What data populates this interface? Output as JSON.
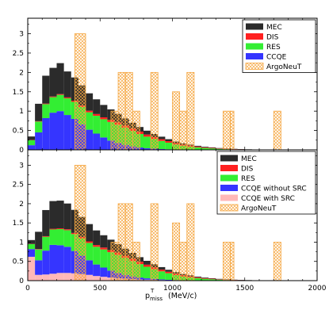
{
  "chart_data": [
    {
      "type": "bar",
      "stacked": true,
      "panel": "top",
      "x_edges": [
        0,
        50,
        100,
        150,
        200,
        250,
        300,
        350,
        400,
        450,
        500,
        550,
        600,
        650,
        700,
        750,
        800,
        850,
        900,
        950,
        1000,
        1050,
        1100,
        1150,
        1200,
        1250,
        1300,
        1350,
        1400,
        1450,
        1500,
        1550,
        1600,
        1650,
        1700,
        1750,
        1800,
        1850,
        1900,
        1950,
        2000
      ],
      "series": [
        {
          "name": "CCQE",
          "color": "#3535ff",
          "values": [
            0.12,
            0.45,
            0.82,
            0.96,
            1.0,
            0.9,
            0.8,
            0.66,
            0.52,
            0.42,
            0.32,
            0.24,
            0.18,
            0.13,
            0.09,
            0.06,
            0.04,
            0.03,
            0.02,
            0.015,
            0.01,
            0.007,
            0.005,
            0.004,
            0.003,
            0.002,
            0.001,
            0.001,
            0.001,
            0,
            0,
            0,
            0,
            0,
            0,
            0,
            0,
            0,
            0,
            0
          ]
        },
        {
          "name": "RES",
          "color": "#33ee33",
          "values": [
            0.13,
            0.28,
            0.36,
            0.4,
            0.42,
            0.43,
            0.44,
            0.45,
            0.45,
            0.46,
            0.47,
            0.48,
            0.47,
            0.44,
            0.4,
            0.35,
            0.3,
            0.25,
            0.21,
            0.17,
            0.13,
            0.1,
            0.08,
            0.06,
            0.045,
            0.035,
            0.025,
            0.018,
            0.013,
            0.009,
            0.006,
            0.004,
            0.003,
            0.002,
            0.001,
            0.001,
            0,
            0,
            0,
            0
          ]
        },
        {
          "name": "DIS",
          "color": "#ff2020",
          "values": [
            0.005,
            0.01,
            0.015,
            0.018,
            0.02,
            0.025,
            0.03,
            0.035,
            0.04,
            0.045,
            0.05,
            0.055,
            0.06,
            0.06,
            0.06,
            0.06,
            0.055,
            0.05,
            0.045,
            0.04,
            0.035,
            0.03,
            0.025,
            0.02,
            0.016,
            0.013,
            0.01,
            0.008,
            0.006,
            0.005,
            0.004,
            0.003,
            0.002,
            0.002,
            0.001,
            0.001,
            0,
            0,
            0,
            0
          ]
        },
        {
          "name": "MEC",
          "color": "#2b2b2b",
          "values": [
            0.09,
            0.45,
            0.72,
            0.74,
            0.8,
            0.67,
            0.6,
            0.52,
            0.45,
            0.38,
            0.32,
            0.27,
            0.22,
            0.18,
            0.15,
            0.12,
            0.1,
            0.08,
            0.065,
            0.05,
            0.04,
            0.03,
            0.025,
            0.02,
            0.016,
            0.013,
            0.01,
            0.008,
            0.006,
            0.005,
            0.004,
            0.003,
            0.002,
            0.002,
            0.001,
            0.001,
            0,
            0,
            0,
            0
          ]
        }
      ],
      "data_series": {
        "name": "ArgoNeuT",
        "color": "#f5a742",
        "bins": [
          [
            325,
            400,
            3
          ],
          [
            575,
            625,
            1
          ],
          [
            625,
            675,
            2
          ],
          [
            675,
            725,
            2
          ],
          [
            725,
            775,
            1
          ],
          [
            850,
            900,
            2
          ],
          [
            1000,
            1050,
            1.5
          ],
          [
            1050,
            1100,
            1
          ],
          [
            1100,
            1150,
            2
          ],
          [
            1350,
            1400,
            1
          ],
          [
            1400,
            1425,
            1
          ],
          [
            1700,
            1750,
            1
          ]
        ]
      },
      "legend": [
        "MEC",
        "DIS",
        "RES",
        "CCQE",
        "ArgoNeuT"
      ],
      "legend_position": "top-right",
      "xlim": [
        0,
        2000
      ],
      "ylim": [
        0,
        3.4
      ],
      "yticks": [
        "0",
        "0.5",
        "1",
        "1.5",
        "2",
        "2.5",
        "3"
      ]
    },
    {
      "type": "bar",
      "stacked": true,
      "panel": "bottom",
      "x_edges": [
        0,
        50,
        100,
        150,
        200,
        250,
        300,
        350,
        400,
        450,
        500,
        550,
        600,
        650,
        700,
        750,
        800,
        850,
        900,
        950,
        1000,
        1050,
        1100,
        1150,
        1200,
        1250,
        1300,
        1350,
        1400,
        1450,
        1500,
        1550,
        1600,
        1650,
        1700,
        1750,
        1800,
        1850,
        1900,
        1950,
        2000
      ],
      "series": [
        {
          "name": "CCQE with SRC",
          "color": "#ffb8b8",
          "values": [
            0.62,
            0.15,
            0.16,
            0.18,
            0.2,
            0.2,
            0.19,
            0.17,
            0.15,
            0.12,
            0.1,
            0.08,
            0.06,
            0.05,
            0.04,
            0.03,
            0.025,
            0.02,
            0.015,
            0.01,
            0.008,
            0.006,
            0.004,
            0.003,
            0.002,
            0.001,
            0.001,
            0,
            0,
            0,
            0,
            0,
            0,
            0,
            0,
            0,
            0,
            0,
            0,
            0
          ]
        },
        {
          "name": "CCQE without SRC",
          "color": "#3535ff",
          "values": [
            0.2,
            0.38,
            0.62,
            0.75,
            0.72,
            0.68,
            0.58,
            0.48,
            0.38,
            0.3,
            0.24,
            0.18,
            0.14,
            0.1,
            0.07,
            0.05,
            0.035,
            0.025,
            0.017,
            0.012,
            0.008,
            0.005,
            0.003,
            0.002,
            0.001,
            0.001,
            0,
            0,
            0,
            0,
            0,
            0,
            0,
            0,
            0,
            0,
            0,
            0,
            0,
            0
          ]
        },
        {
          "name": "RES",
          "color": "#33ee33",
          "values": [
            0.13,
            0.28,
            0.36,
            0.4,
            0.42,
            0.43,
            0.44,
            0.45,
            0.45,
            0.46,
            0.47,
            0.48,
            0.47,
            0.44,
            0.4,
            0.35,
            0.3,
            0.25,
            0.21,
            0.17,
            0.13,
            0.1,
            0.08,
            0.06,
            0.045,
            0.035,
            0.025,
            0.018,
            0.013,
            0.009,
            0.006,
            0.004,
            0.003,
            0.002,
            0.001,
            0.001,
            0,
            0,
            0,
            0
          ]
        },
        {
          "name": "DIS",
          "color": "#ff2020",
          "values": [
            0.005,
            0.01,
            0.015,
            0.018,
            0.02,
            0.025,
            0.03,
            0.035,
            0.04,
            0.045,
            0.05,
            0.055,
            0.06,
            0.06,
            0.06,
            0.06,
            0.055,
            0.05,
            0.045,
            0.04,
            0.035,
            0.03,
            0.025,
            0.02,
            0.016,
            0.013,
            0.01,
            0.008,
            0.006,
            0.005,
            0.004,
            0.003,
            0.002,
            0.002,
            0.001,
            0.001,
            0,
            0,
            0,
            0
          ]
        },
        {
          "name": "MEC",
          "color": "#2b2b2b",
          "values": [
            0.1,
            0.45,
            0.68,
            0.72,
            0.72,
            0.67,
            0.6,
            0.52,
            0.45,
            0.38,
            0.32,
            0.27,
            0.22,
            0.18,
            0.15,
            0.12,
            0.1,
            0.08,
            0.065,
            0.05,
            0.04,
            0.03,
            0.025,
            0.02,
            0.016,
            0.013,
            0.01,
            0.008,
            0.006,
            0.005,
            0.004,
            0.003,
            0.002,
            0.002,
            0.001,
            0.001,
            0,
            0,
            0,
            0
          ]
        }
      ],
      "data_series": {
        "name": "ArgoNeuT",
        "color": "#f5a742",
        "bins": [
          [
            325,
            400,
            3
          ],
          [
            575,
            625,
            1
          ],
          [
            625,
            675,
            2
          ],
          [
            675,
            725,
            2
          ],
          [
            725,
            775,
            1
          ],
          [
            850,
            900,
            2
          ],
          [
            1000,
            1050,
            1.5
          ],
          [
            1050,
            1100,
            1
          ],
          [
            1100,
            1150,
            2
          ],
          [
            1350,
            1400,
            1
          ],
          [
            1400,
            1425,
            1
          ],
          [
            1700,
            1750,
            1
          ]
        ]
      },
      "legend": [
        "MEC",
        "DIS",
        "RES",
        "CCQE without SRC",
        "CCQE with SRC",
        "ArgoNeuT"
      ],
      "legend_position": "top-right",
      "xlim": [
        0,
        2000
      ],
      "ylim": [
        0,
        3.4
      ],
      "yticks": [
        "0",
        "0.5",
        "1",
        "1.5",
        "2",
        "2.5",
        "3"
      ],
      "xticks": [
        "0",
        "500",
        "1000",
        "1500",
        "2000"
      ]
    }
  ],
  "xlabel": {
    "main": "p",
    "sub": "miss",
    "sup": "T",
    "unit": "(MeV/c)"
  }
}
